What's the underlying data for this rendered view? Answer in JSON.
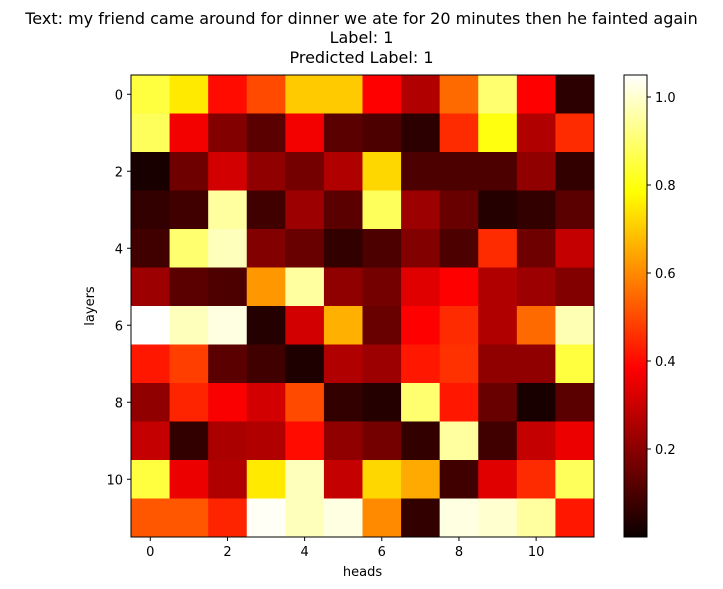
{
  "titles": {
    "line1": "Text: my friend came around for dinner we ate for 20 minutes then he fainted again",
    "line2": "Label: 1",
    "line3": "Predicted Label: 1"
  },
  "chart_data": {
    "type": "heatmap",
    "xlabel": "heads",
    "ylabel": "layers",
    "colormap": "hot",
    "color_range": [
      0.0,
      1.05
    ],
    "colorbar_ticks": [
      "0.2",
      "0.4",
      "0.6",
      "0.8",
      "1.0"
    ],
    "colorbar_tick_values": [
      0.2,
      0.4,
      0.6,
      0.8,
      1.0
    ],
    "x_tick_labels": [
      "0",
      "2",
      "4",
      "6",
      "8",
      "10"
    ],
    "x_tick_values": [
      0,
      2,
      4,
      6,
      8,
      10
    ],
    "y_tick_labels": [
      "0",
      "2",
      "4",
      "6",
      "8",
      "10"
    ],
    "y_tick_values": [
      0,
      2,
      4,
      6,
      8,
      10
    ],
    "rows": 12,
    "cols": 12,
    "values": [
      [
        0.85,
        0.75,
        0.4,
        0.5,
        0.7,
        0.7,
        0.38,
        0.25,
        0.55,
        0.9,
        0.38,
        0.05
      ],
      [
        0.88,
        0.35,
        0.18,
        0.12,
        0.35,
        0.12,
        0.1,
        0.05,
        0.45,
        0.8,
        0.25,
        0.45
      ],
      [
        0.02,
        0.15,
        0.3,
        0.2,
        0.16,
        0.25,
        0.72,
        0.1,
        0.1,
        0.1,
        0.2,
        0.06
      ],
      [
        0.06,
        0.08,
        0.95,
        0.08,
        0.22,
        0.12,
        0.88,
        0.22,
        0.14,
        0.04,
        0.06,
        0.12
      ],
      [
        0.08,
        0.9,
        0.98,
        0.18,
        0.14,
        0.06,
        0.1,
        0.18,
        0.1,
        0.45,
        0.15,
        0.28
      ],
      [
        0.22,
        0.12,
        0.1,
        0.62,
        0.95,
        0.2,
        0.16,
        0.32,
        0.38,
        0.25,
        0.22,
        0.18
      ],
      [
        1.05,
        0.98,
        1.02,
        0.04,
        0.3,
        0.66,
        0.14,
        0.38,
        0.45,
        0.25,
        0.55,
        0.97
      ],
      [
        0.42,
        0.48,
        0.12,
        0.08,
        0.03,
        0.25,
        0.22,
        0.42,
        0.46,
        0.2,
        0.2,
        0.85
      ],
      [
        0.2,
        0.44,
        0.36,
        0.3,
        0.5,
        0.06,
        0.04,
        0.9,
        0.42,
        0.14,
        0.02,
        0.12
      ],
      [
        0.28,
        0.06,
        0.24,
        0.25,
        0.4,
        0.2,
        0.16,
        0.06,
        0.95,
        0.08,
        0.28,
        0.34
      ],
      [
        0.85,
        0.34,
        0.25,
        0.75,
        0.98,
        0.28,
        0.72,
        0.65,
        0.08,
        0.32,
        0.45,
        0.88
      ],
      [
        0.52,
        0.52,
        0.44,
        1.04,
        0.98,
        1.02,
        0.6,
        0.06,
        1.02,
        1.0,
        0.95,
        0.42
      ]
    ]
  }
}
